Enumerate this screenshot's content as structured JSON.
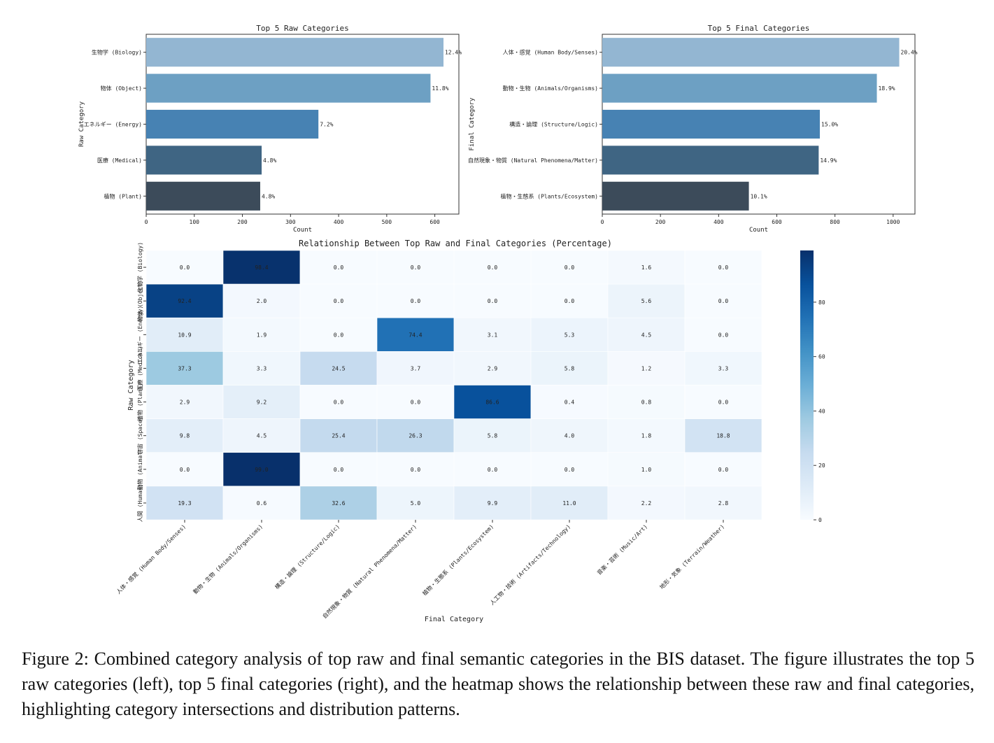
{
  "chart_data": [
    {
      "type": "bar",
      "orientation": "horizontal",
      "title": "Top 5 Raw Categories",
      "xlabel": "Count",
      "ylabel": "Raw Category",
      "categories": [
        "生物学 (Biology)",
        "物体 (Object)",
        "エネルギー (Energy)",
        "医療 (Medical)",
        "植物 (Plant)"
      ],
      "values": [
        618,
        591,
        358,
        240,
        237
      ],
      "value_labels": [
        "12.4%",
        "11.8%",
        "7.2%",
        "4.8%",
        "4.8%"
      ],
      "xlim": [
        0,
        650
      ],
      "xticks": [
        "0",
        "100",
        "200",
        "300",
        "400",
        "500",
        "600"
      ],
      "colors": [
        "#93b6d2",
        "#6da0c3",
        "#4782b3",
        "#3f6583",
        "#3c4b5a"
      ]
    },
    {
      "type": "bar",
      "orientation": "horizontal",
      "title": "Top 5 Final Categories",
      "xlabel": "Count",
      "ylabel": "Final Category",
      "categories": [
        "人体・感覚 (Human Body/Senses)",
        "動物・生物 (Animals/Organisms)",
        "構造・論理 (Structure/Logic)",
        "自然現象・物質 (Natural Phenomena/Matter)",
        "植物・生態系 (Plants/Ecosystem)"
      ],
      "values": [
        1021,
        944,
        748,
        744,
        504
      ],
      "value_labels": [
        "20.4%",
        "18.9%",
        "15.0%",
        "14.9%",
        "10.1%"
      ],
      "xlim": [
        0,
        1075
      ],
      "xticks": [
        "0",
        "200",
        "400",
        "600",
        "800",
        "1000"
      ],
      "colors": [
        "#93b6d2",
        "#6da0c3",
        "#4782b3",
        "#3f6583",
        "#3c4b5a"
      ]
    },
    {
      "type": "heatmap",
      "title": "Relationship Between Top Raw and Final Categories (Percentage)",
      "xlabel": "Final Category",
      "ylabel": "Raw Category",
      "rows": [
        "生物学 (Biology)",
        "物体 (Object)",
        "エネルギー (Energy)",
        "医療 (Medical)",
        "植物 (Plant)",
        "宇宙 (Space)",
        "動物 (Animal)",
        "人間 (Human)"
      ],
      "columns": [
        "人体・感覚 (Human Body/Senses)",
        "動物・生物 (Animals/Organisms)",
        "構造・論理 (Structure/Logic)",
        "自然現象・物質 (Natural Phenomena/Matter)",
        "植物・生態系 (Plants/Ecosystem)",
        "人工物・技術 (Artifacts/Technology)",
        "音楽・芸術 (Music/Art)",
        "地形・気象 (Terrain/Weather)"
      ],
      "values": [
        [
          0.0,
          98.4,
          0.0,
          0.0,
          0.0,
          0.0,
          1.6,
          0.0
        ],
        [
          92.4,
          2.0,
          0.0,
          0.0,
          0.0,
          0.0,
          5.6,
          0.0
        ],
        [
          10.9,
          1.9,
          0.0,
          74.4,
          3.1,
          5.3,
          4.5,
          0.0
        ],
        [
          37.3,
          3.3,
          24.5,
          3.7,
          2.9,
          5.8,
          1.2,
          3.3
        ],
        [
          2.9,
          9.2,
          0.0,
          0.0,
          86.6,
          0.4,
          0.8,
          0.0
        ],
        [
          9.8,
          4.5,
          25.4,
          26.3,
          5.8,
          4.0,
          1.8,
          18.8
        ],
        [
          0.0,
          99.0,
          0.0,
          0.0,
          0.0,
          0.0,
          1.0,
          0.0
        ],
        [
          19.3,
          0.6,
          32.6,
          5.0,
          9.9,
          11.0,
          2.2,
          2.8
        ]
      ],
      "colorbar": {
        "range": [
          0,
          99
        ],
        "ticks": [
          "0",
          "20",
          "40",
          "60",
          "80"
        ],
        "colormap": "Blues"
      }
    }
  ],
  "caption": "Figure 2: Combined category analysis of top raw and final semantic categories in the BIS dataset. The figure illustrates the top 5 raw categories (left), top 5 final categories (right), and the heatmap shows the relationship between these raw and final categories, highlighting category intersections and distribution patterns."
}
